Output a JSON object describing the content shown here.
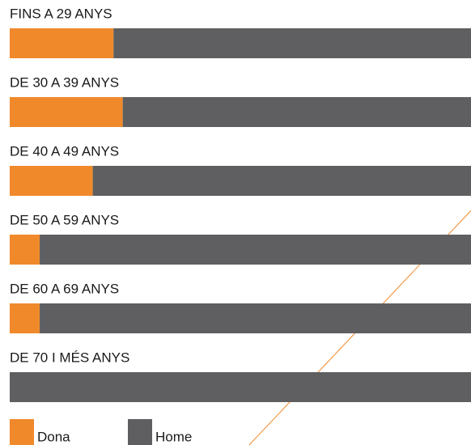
{
  "chart_data": {
    "type": "stacked_bar_horizontal",
    "categories": [
      "FINS A 29 ANYS",
      "DE 30 A 39 ANYS",
      "DE 40 A 49 ANYS",
      "DE 50 A 59 ANYS",
      "DE 60 A 69 ANYS",
      "DE 70 I MÉS ANYS"
    ],
    "series": [
      {
        "name": "Dona",
        "color": "#f0892a",
        "values": [
          22.5,
          24.5,
          18,
          6.5,
          6.5,
          0
        ]
      },
      {
        "name": "Home",
        "color": "#5f5f61",
        "values": [
          77.5,
          75.5,
          82,
          93.5,
          93.5,
          100
        ]
      }
    ]
  }
}
